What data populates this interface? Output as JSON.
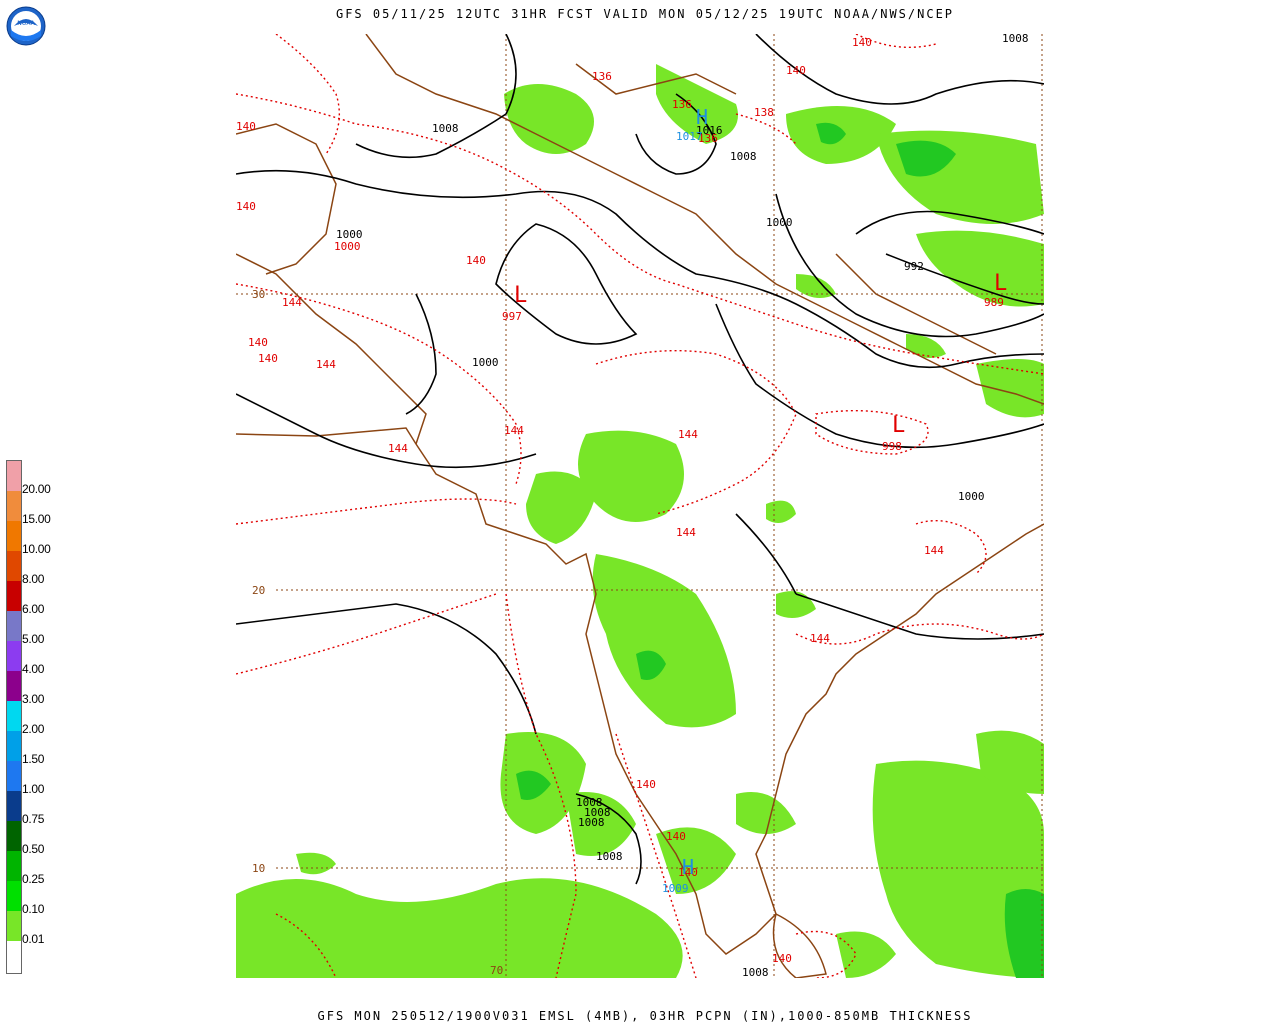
{
  "header": {
    "title": "GFS 05/11/25 12UTC 31HR FCST VALID MON 05/12/25 19UTC NOAA/NWS/NCEP"
  },
  "footer": {
    "caption": "GFS MON 250512/1900V031 EMSL (4MB), 03HR PCPN (IN),1000-850MB THICKNESS"
  },
  "logo": {
    "text": "NOAA",
    "icon": "noaa-logo"
  },
  "legend": {
    "items": [
      {
        "label": "20.00",
        "color": "#f0a0a8"
      },
      {
        "label": "15.00",
        "color": "#f08c3c"
      },
      {
        "label": "10.00",
        "color": "#f07800"
      },
      {
        "label": "8.00",
        "color": "#e04800"
      },
      {
        "label": "6.00",
        "color": "#c80000"
      },
      {
        "label": "5.00",
        "color": "#7878c8"
      },
      {
        "label": "4.00",
        "color": "#8c3cf0"
      },
      {
        "label": "3.00",
        "color": "#8c008c"
      },
      {
        "label": "2.00",
        "color": "#00d8f0"
      },
      {
        "label": "1.50",
        "color": "#00a0e8"
      },
      {
        "label": "1.00",
        "color": "#1e78f0"
      },
      {
        "label": "0.75",
        "color": "#0a3c8c"
      },
      {
        "label": "0.50",
        "color": "#006400"
      },
      {
        "label": "0.25",
        "color": "#00b400"
      },
      {
        "label": "0.10",
        "color": "#00e000"
      },
      {
        "label": "0.01",
        "color": "#78e628"
      },
      {
        "label": "",
        "color": "#ffffff"
      }
    ]
  },
  "grid_labels": {
    "lat_30": "30",
    "lat_20": "20",
    "lat_10": "10",
    "lon_70": "70"
  },
  "pressure_labels": [
    "1008",
    "1008",
    "1008",
    "1000",
    "1000",
    "992",
    "1000",
    "1000",
    "1008",
    "1008",
    "1008",
    "1008",
    "1016",
    "1008"
  ],
  "thickness_labels": [
    "136",
    "140",
    "140",
    "140",
    "144",
    "144",
    "144",
    "144",
    "144",
    "144",
    "144",
    "140",
    "140",
    "140",
    "140",
    "136",
    "138",
    "140",
    "136",
    "140",
    "140",
    "140"
  ],
  "centers": {
    "low_1": {
      "symbol": "L",
      "value": "997"
    },
    "low_2": {
      "symbol": "L",
      "value": "989"
    },
    "low_3": {
      "symbol": "L",
      "value": "998"
    },
    "high_1": {
      "symbol": "H",
      "value": "1017"
    },
    "high_2": {
      "symbol": "H",
      "value": "1009"
    },
    "small_1000": "1000"
  },
  "colors": {
    "pressure": "#000000",
    "thickness": "#e00000",
    "coast": "#8b4513",
    "grid": "#8b4513",
    "precip": "#78e628",
    "precip_heavy": "#22c822"
  }
}
